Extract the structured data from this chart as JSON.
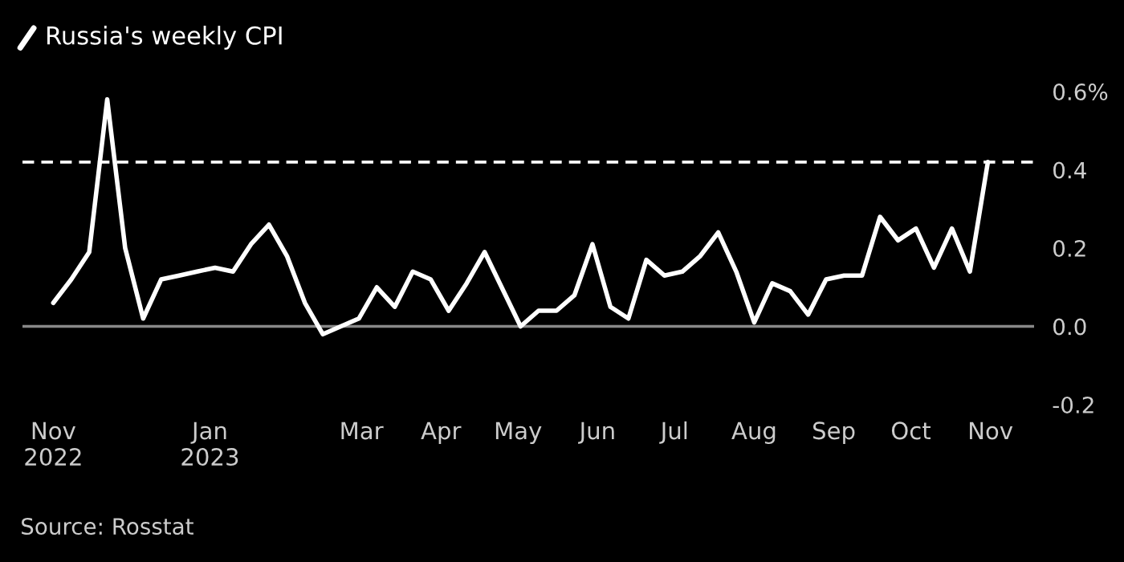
{
  "chart_data": {
    "type": "line",
    "title": "Russia's weekly CPI",
    "x": [
      "2022-11-01",
      "2022-11-08",
      "2022-11-15",
      "2022-11-22",
      "2022-11-29",
      "2022-12-06",
      "2022-12-13",
      "2022-12-20",
      "2022-12-27",
      "2023-01-03",
      "2023-01-10",
      "2023-01-17",
      "2023-01-24",
      "2023-01-31",
      "2023-02-07",
      "2023-02-14",
      "2023-02-21",
      "2023-02-28",
      "2023-03-07",
      "2023-03-14",
      "2023-03-21",
      "2023-03-28",
      "2023-04-04",
      "2023-04-11",
      "2023-04-18",
      "2023-05-02",
      "2023-05-09",
      "2023-05-16",
      "2023-05-23",
      "2023-05-30",
      "2023-06-06",
      "2023-06-13",
      "2023-06-20",
      "2023-06-27",
      "2023-07-04",
      "2023-07-11",
      "2023-07-18",
      "2023-07-25",
      "2023-08-01",
      "2023-08-08",
      "2023-08-15",
      "2023-08-22",
      "2023-08-29",
      "2023-09-05",
      "2023-09-12",
      "2023-09-19",
      "2023-09-26",
      "2023-10-03",
      "2023-10-10",
      "2023-10-17",
      "2023-10-24",
      "2023-10-31"
    ],
    "series": [
      {
        "color": "#ffffff",
        "values": [
          0.06,
          0.12,
          0.19,
          0.58,
          0.2,
          0.02,
          0.12,
          0.13,
          0.14,
          0.15,
          0.14,
          0.21,
          0.26,
          0.18,
          0.06,
          -0.02,
          0.0,
          0.02,
          0.1,
          0.05,
          0.14,
          0.12,
          0.04,
          0.11,
          0.19,
          0.0,
          0.04,
          0.04,
          0.08,
          0.21,
          0.05,
          0.02,
          0.17,
          0.13,
          0.14,
          0.18,
          0.24,
          0.14,
          0.01,
          0.11,
          0.09,
          0.03,
          0.12,
          0.13,
          0.13,
          0.28,
          0.22,
          0.25,
          0.15,
          0.25,
          0.14,
          0.42
        ]
      }
    ],
    "xlim": [
      "2022-10-20",
      "2023-11-18"
    ],
    "xticks": [
      {
        "value": "2022-11-01",
        "label": "Nov\n2022"
      },
      {
        "value": "2023-01-01",
        "label": "Jan\n2023"
      },
      {
        "value": "2023-03-01",
        "label": "Mar"
      },
      {
        "value": "2023-04-01",
        "label": "Apr"
      },
      {
        "value": "2023-05-01",
        "label": "May"
      },
      {
        "value": "2023-06-01",
        "label": "Jun"
      },
      {
        "value": "2023-07-01",
        "label": "Jul"
      },
      {
        "value": "2023-08-01",
        "label": "Aug"
      },
      {
        "value": "2023-09-01",
        "label": "Sep"
      },
      {
        "value": "2023-10-01",
        "label": "Oct"
      },
      {
        "value": "2023-11-01",
        "label": "Nov"
      }
    ],
    "ylim": [
      -0.2,
      0.6
    ],
    "yticks": [
      {
        "value": -0.2,
        "label": "-0.2"
      },
      {
        "value": 0.0,
        "label": "0.0"
      },
      {
        "value": 0.2,
        "label": "0.2"
      },
      {
        "value": 0.4,
        "label": "0.4"
      },
      {
        "value": 0.6,
        "label": "0.6%"
      }
    ],
    "ref_lines": [
      {
        "axis": "y",
        "value": 0.0,
        "color": "#888888",
        "line_style": "solid"
      },
      {
        "axis": "y",
        "value": 0.42,
        "color": "#ffffff",
        "line_style": "dashed"
      }
    ],
    "grid": false,
    "legend": false,
    "marker": "none",
    "line_style": "solid",
    "annotations": [
      "Source: Rosstat"
    ]
  }
}
